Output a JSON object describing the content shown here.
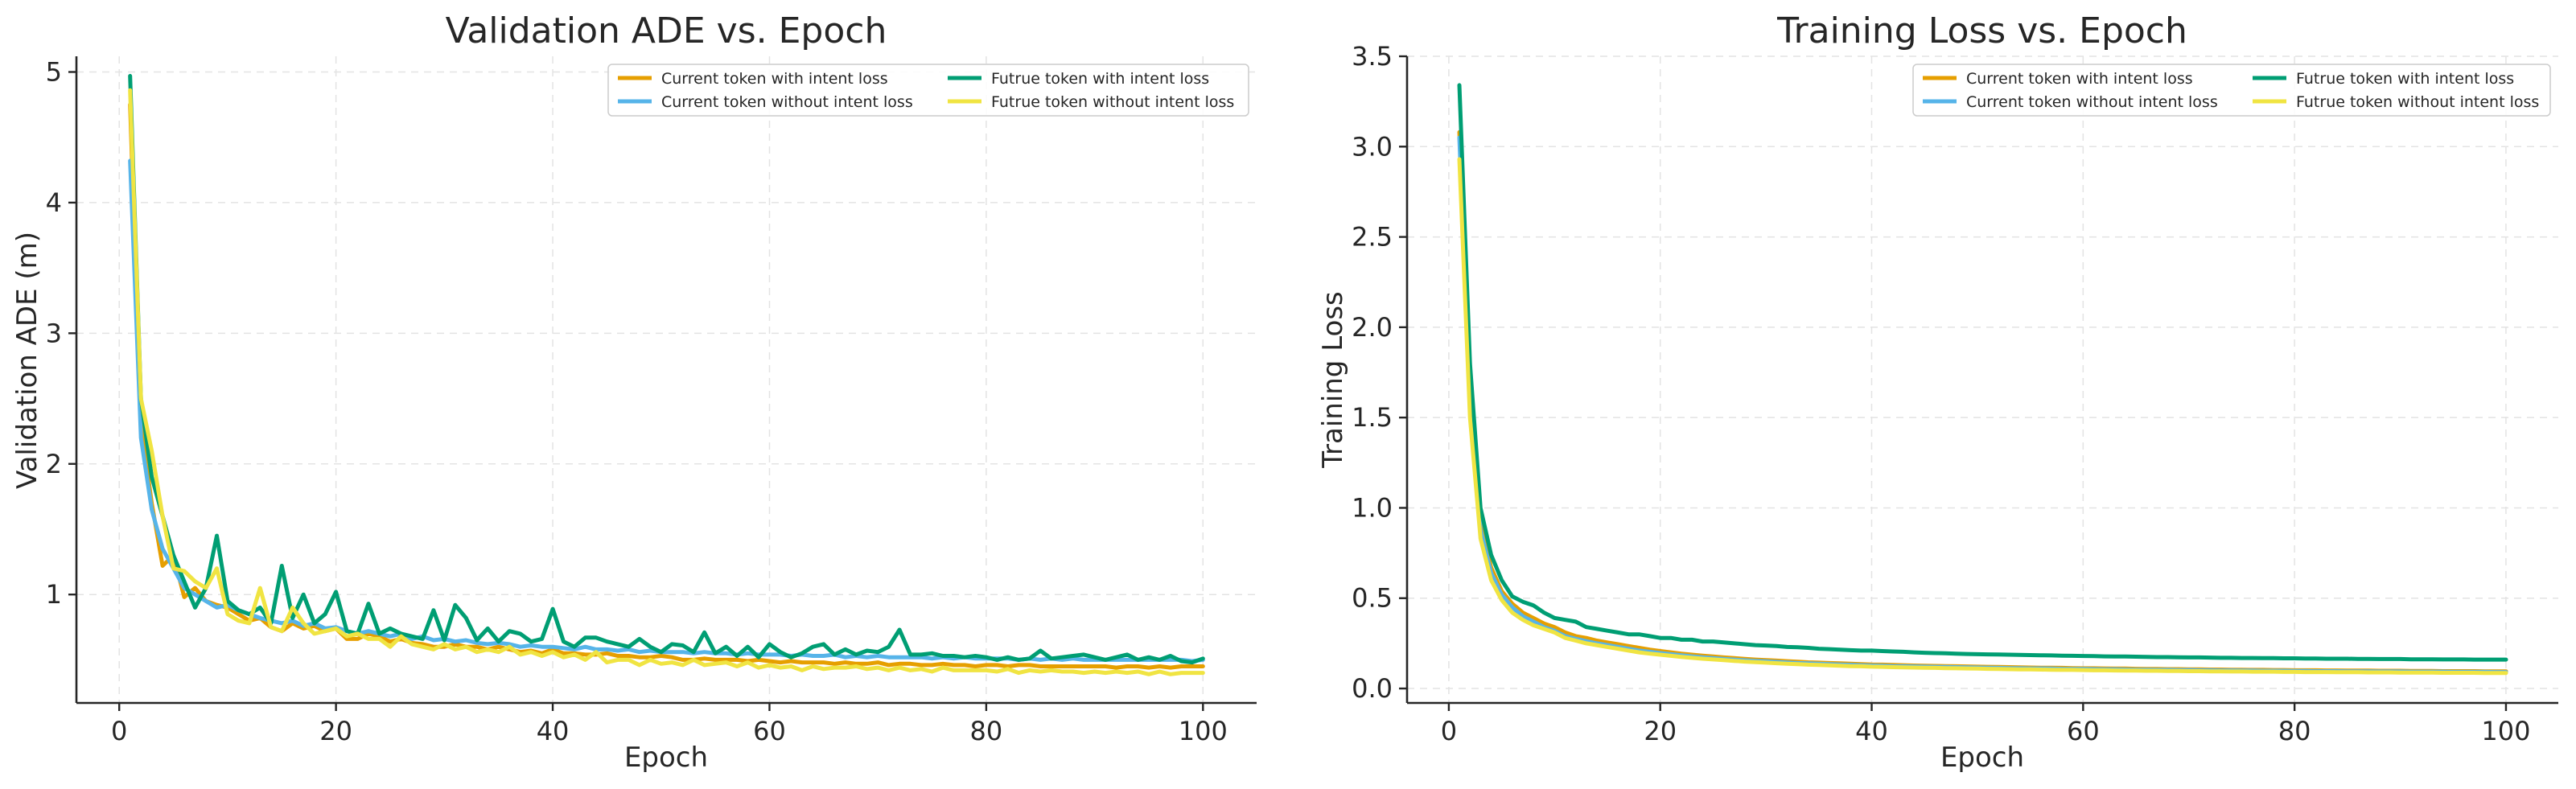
{
  "chart_data": [
    {
      "type": "line",
      "title": "Validation ADE vs. Epoch",
      "xlabel": "Epoch",
      "ylabel": "Validation ADE (m)",
      "xlim": [
        -3.95,
        104.95
      ],
      "ylim": [
        0.17,
        5.12
      ],
      "xticks": [
        0,
        20,
        40,
        60,
        80,
        100
      ],
      "yticks": [
        1,
        2,
        3,
        4,
        5
      ],
      "grid": true,
      "legend": {
        "placement": "top-right",
        "columns": 2
      },
      "x": [
        1,
        2,
        3,
        4,
        5,
        6,
        7,
        8,
        9,
        10,
        11,
        12,
        13,
        14,
        15,
        16,
        17,
        18,
        19,
        20,
        21,
        22,
        23,
        24,
        25,
        26,
        27,
        28,
        29,
        30,
        31,
        32,
        33,
        34,
        35,
        36,
        37,
        38,
        39,
        40,
        41,
        42,
        43,
        44,
        45,
        46,
        47,
        48,
        49,
        50,
        51,
        52,
        53,
        54,
        55,
        56,
        57,
        58,
        59,
        60,
        61,
        62,
        63,
        64,
        65,
        66,
        67,
        68,
        69,
        70,
        71,
        72,
        73,
        74,
        75,
        76,
        77,
        78,
        79,
        80,
        81,
        82,
        83,
        84,
        85,
        86,
        87,
        88,
        89,
        90,
        91,
        92,
        93,
        94,
        95,
        96,
        97,
        98,
        99,
        100
      ],
      "series": [
        {
          "name": "Current token with intent loss",
          "color": "#E69F00",
          "values": [
            4.75,
            2.3,
            1.7,
            1.22,
            1.3,
            0.98,
            1.05,
            0.95,
            0.92,
            0.9,
            0.85,
            0.8,
            0.82,
            0.75,
            0.72,
            0.78,
            0.74,
            0.76,
            0.72,
            0.74,
            0.66,
            0.66,
            0.7,
            0.68,
            0.64,
            0.66,
            0.63,
            0.62,
            0.6,
            0.6,
            0.62,
            0.6,
            0.6,
            0.58,
            0.6,
            0.58,
            0.56,
            0.57,
            0.55,
            0.58,
            0.55,
            0.55,
            0.54,
            0.54,
            0.55,
            0.53,
            0.53,
            0.52,
            0.52,
            0.53,
            0.52,
            0.5,
            0.5,
            0.51,
            0.5,
            0.5,
            0.5,
            0.49,
            0.5,
            0.49,
            0.48,
            0.49,
            0.48,
            0.48,
            0.48,
            0.47,
            0.48,
            0.47,
            0.47,
            0.48,
            0.46,
            0.47,
            0.47,
            0.46,
            0.46,
            0.47,
            0.46,
            0.46,
            0.45,
            0.46,
            0.46,
            0.45,
            0.46,
            0.46,
            0.45,
            0.45,
            0.45,
            0.45,
            0.45,
            0.45,
            0.45,
            0.44,
            0.45,
            0.45,
            0.44,
            0.45,
            0.44,
            0.45,
            0.45,
            0.45
          ]
        },
        {
          "name": "Current token without intent loss",
          "color": "#56B4E9",
          "values": [
            4.32,
            2.2,
            1.65,
            1.35,
            1.2,
            1.05,
            1.0,
            0.95,
            0.9,
            0.92,
            0.88,
            0.85,
            0.82,
            0.8,
            0.78,
            0.8,
            0.76,
            0.78,
            0.74,
            0.75,
            0.72,
            0.7,
            0.72,
            0.7,
            0.68,
            0.7,
            0.66,
            0.68,
            0.65,
            0.66,
            0.64,
            0.65,
            0.63,
            0.62,
            0.63,
            0.62,
            0.6,
            0.61,
            0.6,
            0.6,
            0.59,
            0.58,
            0.6,
            0.58,
            0.58,
            0.57,
            0.58,
            0.56,
            0.57,
            0.56,
            0.56,
            0.56,
            0.55,
            0.56,
            0.55,
            0.55,
            0.54,
            0.55,
            0.54,
            0.54,
            0.54,
            0.53,
            0.54,
            0.53,
            0.53,
            0.54,
            0.52,
            0.53,
            0.52,
            0.53,
            0.52,
            0.52,
            0.52,
            0.52,
            0.51,
            0.52,
            0.51,
            0.52,
            0.51,
            0.51,
            0.51,
            0.51,
            0.5,
            0.51,
            0.5,
            0.51,
            0.5,
            0.51,
            0.5,
            0.5,
            0.5,
            0.5,
            0.5,
            0.5,
            0.5,
            0.5,
            0.5,
            0.5,
            0.49,
            0.5
          ]
        },
        {
          "name": "Futrue token with intent loss",
          "color": "#009E73",
          "values": [
            4.97,
            2.5,
            1.9,
            1.6,
            1.3,
            1.1,
            0.9,
            1.05,
            1.45,
            0.95,
            0.88,
            0.85,
            0.9,
            0.78,
            1.22,
            0.82,
            1.0,
            0.78,
            0.85,
            1.02,
            0.72,
            0.7,
            0.93,
            0.7,
            0.74,
            0.7,
            0.68,
            0.66,
            0.88,
            0.65,
            0.92,
            0.82,
            0.65,
            0.74,
            0.64,
            0.72,
            0.7,
            0.64,
            0.66,
            0.89,
            0.64,
            0.6,
            0.67,
            0.67,
            0.64,
            0.62,
            0.6,
            0.66,
            0.6,
            0.56,
            0.62,
            0.61,
            0.56,
            0.71,
            0.55,
            0.6,
            0.53,
            0.6,
            0.52,
            0.62,
            0.56,
            0.52,
            0.55,
            0.6,
            0.62,
            0.54,
            0.58,
            0.54,
            0.57,
            0.56,
            0.6,
            0.73,
            0.54,
            0.54,
            0.55,
            0.53,
            0.53,
            0.52,
            0.53,
            0.52,
            0.5,
            0.52,
            0.5,
            0.51,
            0.57,
            0.51,
            0.52,
            0.53,
            0.54,
            0.52,
            0.5,
            0.52,
            0.54,
            0.5,
            0.52,
            0.5,
            0.53,
            0.49,
            0.48,
            0.51
          ]
        },
        {
          "name": "Futrue token without intent loss",
          "color": "#F0E442",
          "values": [
            4.86,
            2.5,
            2.1,
            1.6,
            1.2,
            1.18,
            1.1,
            1.05,
            1.2,
            0.85,
            0.8,
            0.78,
            1.05,
            0.75,
            0.72,
            0.9,
            0.78,
            0.7,
            0.72,
            0.74,
            0.68,
            0.7,
            0.66,
            0.66,
            0.6,
            0.68,
            0.62,
            0.6,
            0.58,
            0.62,
            0.58,
            0.6,
            0.56,
            0.58,
            0.56,
            0.6,
            0.54,
            0.56,
            0.53,
            0.56,
            0.52,
            0.54,
            0.5,
            0.56,
            0.48,
            0.5,
            0.5,
            0.46,
            0.5,
            0.47,
            0.48,
            0.46,
            0.5,
            0.46,
            0.47,
            0.48,
            0.45,
            0.48,
            0.44,
            0.46,
            0.44,
            0.45,
            0.42,
            0.45,
            0.43,
            0.44,
            0.44,
            0.45,
            0.43,
            0.44,
            0.42,
            0.44,
            0.42,
            0.43,
            0.41,
            0.44,
            0.42,
            0.42,
            0.42,
            0.42,
            0.41,
            0.43,
            0.4,
            0.42,
            0.41,
            0.42,
            0.41,
            0.41,
            0.4,
            0.41,
            0.4,
            0.41,
            0.4,
            0.41,
            0.39,
            0.41,
            0.39,
            0.4,
            0.4,
            0.4
          ]
        }
      ]
    },
    {
      "type": "line",
      "title": "Training Loss vs. Epoch",
      "xlabel": "Epoch",
      "ylabel": "Training Loss",
      "xlim": [
        -3.95,
        104.95
      ],
      "ylim": [
        -0.08,
        3.5
      ],
      "xticks": [
        0,
        20,
        40,
        60,
        80,
        100
      ],
      "yticks": [
        0.0,
        0.5,
        1.0,
        1.5,
        2.0,
        2.5,
        3.0,
        3.5
      ],
      "ytick_labels": [
        "0.0",
        "0.5",
        "1.0",
        "1.5",
        "2.0",
        "2.5",
        "3.0",
        "3.5"
      ],
      "grid": true,
      "legend": {
        "placement": "top-right",
        "columns": 2
      },
      "x": [
        1,
        2,
        3,
        4,
        5,
        6,
        7,
        8,
        9,
        10,
        11,
        12,
        13,
        14,
        15,
        16,
        17,
        18,
        19,
        20,
        21,
        22,
        23,
        24,
        25,
        26,
        27,
        28,
        29,
        30,
        31,
        32,
        33,
        34,
        35,
        36,
        37,
        38,
        39,
        40,
        41,
        42,
        43,
        44,
        45,
        46,
        47,
        48,
        49,
        50,
        51,
        52,
        53,
        54,
        55,
        56,
        57,
        58,
        59,
        60,
        61,
        62,
        63,
        64,
        65,
        66,
        67,
        68,
        69,
        70,
        71,
        72,
        73,
        74,
        75,
        76,
        77,
        78,
        79,
        80,
        81,
        82,
        83,
        84,
        85,
        86,
        87,
        88,
        89,
        90,
        91,
        92,
        93,
        94,
        95,
        96,
        97,
        98,
        99,
        100
      ],
      "series": [
        {
          "name": "Current token with intent loss",
          "color": "#E69F00",
          "values": [
            3.08,
            1.63,
            0.91,
            0.67,
            0.54,
            0.47,
            0.42,
            0.39,
            0.36,
            0.34,
            0.31,
            0.29,
            0.28,
            0.265,
            0.255,
            0.245,
            0.235,
            0.225,
            0.215,
            0.207,
            0.2,
            0.193,
            0.187,
            0.182,
            0.177,
            0.172,
            0.168,
            0.164,
            0.16,
            0.157,
            0.154,
            0.151,
            0.148,
            0.145,
            0.143,
            0.141,
            0.139,
            0.137,
            0.135,
            0.133,
            0.132,
            0.13,
            0.129,
            0.127,
            0.126,
            0.125,
            0.124,
            0.123,
            0.122,
            0.121,
            0.12,
            0.119,
            0.118,
            0.117,
            0.116,
            0.115,
            0.115,
            0.114,
            0.113,
            0.112,
            0.112,
            0.111,
            0.11,
            0.11,
            0.109,
            0.108,
            0.108,
            0.107,
            0.107,
            0.106,
            0.106,
            0.105,
            0.105,
            0.104,
            0.104,
            0.103,
            0.103,
            0.102,
            0.102,
            0.101,
            0.101,
            0.101,
            0.1,
            0.1,
            0.099,
            0.099,
            0.099,
            0.098,
            0.098,
            0.098,
            0.097,
            0.097,
            0.097,
            0.096,
            0.096,
            0.096,
            0.096,
            0.095,
            0.095,
            0.095
          ]
        },
        {
          "name": "Current token without intent loss",
          "color": "#56B4E9",
          "values": [
            3.05,
            1.58,
            0.88,
            0.64,
            0.52,
            0.45,
            0.4,
            0.37,
            0.34,
            0.32,
            0.29,
            0.275,
            0.262,
            0.25,
            0.24,
            0.23,
            0.22,
            0.21,
            0.203,
            0.196,
            0.19,
            0.184,
            0.178,
            0.173,
            0.168,
            0.164,
            0.16,
            0.156,
            0.153,
            0.15,
            0.147,
            0.144,
            0.141,
            0.139,
            0.137,
            0.135,
            0.133,
            0.131,
            0.129,
            0.127,
            0.126,
            0.124,
            0.123,
            0.122,
            0.121,
            0.12,
            0.119,
            0.118,
            0.117,
            0.116,
            0.115,
            0.114,
            0.113,
            0.112,
            0.111,
            0.111,
            0.11,
            0.109,
            0.108,
            0.108,
            0.107,
            0.106,
            0.106,
            0.105,
            0.104,
            0.104,
            0.103,
            0.103,
            0.102,
            0.102,
            0.101,
            0.101,
            0.1,
            0.1,
            0.099,
            0.099,
            0.098,
            0.098,
            0.098,
            0.097,
            0.097,
            0.096,
            0.096,
            0.096,
            0.095,
            0.095,
            0.095,
            0.094,
            0.094,
            0.094,
            0.093,
            0.093,
            0.093,
            0.093,
            0.092,
            0.092,
            0.092,
            0.092,
            0.091,
            0.091
          ]
        },
        {
          "name": "Futrue token with intent loss",
          "color": "#009E73",
          "values": [
            3.34,
            1.8,
            1.0,
            0.74,
            0.6,
            0.51,
            0.48,
            0.46,
            0.42,
            0.39,
            0.38,
            0.37,
            0.34,
            0.33,
            0.32,
            0.31,
            0.3,
            0.3,
            0.29,
            0.28,
            0.28,
            0.27,
            0.27,
            0.26,
            0.26,
            0.255,
            0.25,
            0.245,
            0.24,
            0.238,
            0.235,
            0.23,
            0.228,
            0.225,
            0.22,
            0.218,
            0.215,
            0.212,
            0.21,
            0.21,
            0.207,
            0.205,
            0.203,
            0.2,
            0.198,
            0.196,
            0.195,
            0.193,
            0.191,
            0.19,
            0.189,
            0.188,
            0.187,
            0.186,
            0.185,
            0.184,
            0.183,
            0.182,
            0.181,
            0.18,
            0.179,
            0.178,
            0.177,
            0.177,
            0.176,
            0.175,
            0.174,
            0.174,
            0.173,
            0.172,
            0.172,
            0.171,
            0.17,
            0.17,
            0.169,
            0.169,
            0.168,
            0.168,
            0.167,
            0.167,
            0.166,
            0.166,
            0.165,
            0.165,
            0.165,
            0.164,
            0.164,
            0.163,
            0.163,
            0.163,
            0.162,
            0.162,
            0.162,
            0.161,
            0.161,
            0.161,
            0.16,
            0.16,
            0.16,
            0.16
          ]
        },
        {
          "name": "Futrue token without intent loss",
          "color": "#F0E442",
          "values": [
            2.93,
            1.5,
            0.83,
            0.6,
            0.49,
            0.42,
            0.38,
            0.35,
            0.33,
            0.31,
            0.28,
            0.265,
            0.25,
            0.24,
            0.23,
            0.22,
            0.21,
            0.2,
            0.193,
            0.187,
            0.181,
            0.175,
            0.17,
            0.165,
            0.161,
            0.157,
            0.153,
            0.149,
            0.146,
            0.143,
            0.14,
            0.137,
            0.135,
            0.132,
            0.13,
            0.128,
            0.126,
            0.124,
            0.123,
            0.121,
            0.12,
            0.118,
            0.117,
            0.116,
            0.115,
            0.114,
            0.113,
            0.112,
            0.111,
            0.11,
            0.109,
            0.108,
            0.107,
            0.106,
            0.106,
            0.105,
            0.104,
            0.103,
            0.103,
            0.102,
            0.101,
            0.101,
            0.1,
            0.099,
            0.099,
            0.098,
            0.098,
            0.097,
            0.097,
            0.096,
            0.096,
            0.095,
            0.095,
            0.094,
            0.094,
            0.093,
            0.093,
            0.093,
            0.092,
            0.092,
            0.091,
            0.091,
            0.091,
            0.09,
            0.09,
            0.09,
            0.089,
            0.089,
            0.089,
            0.088,
            0.088,
            0.088,
            0.088,
            0.087,
            0.087,
            0.087,
            0.087,
            0.086,
            0.086,
            0.086
          ]
        }
      ]
    }
  ]
}
